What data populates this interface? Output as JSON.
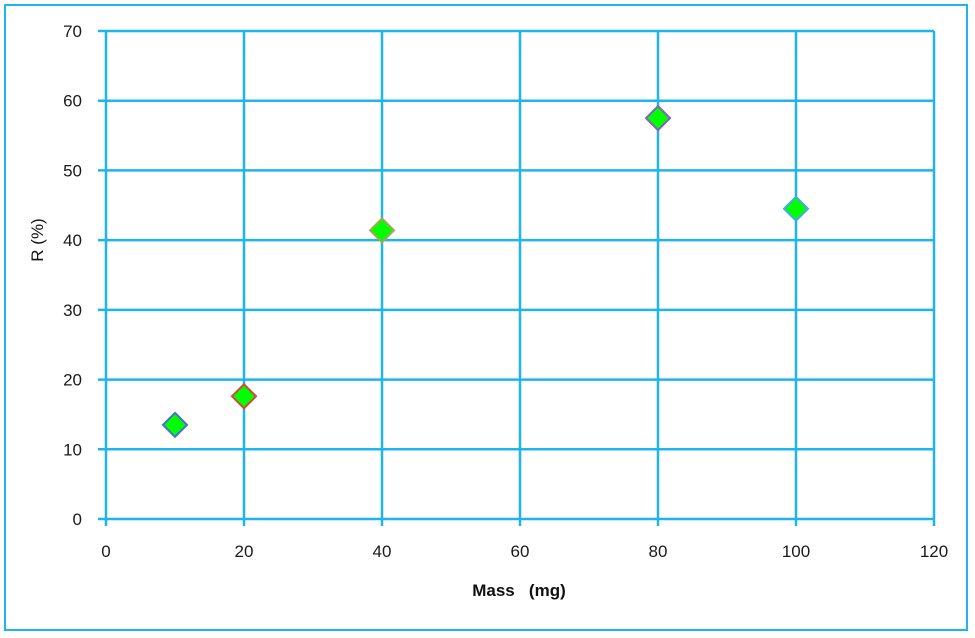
{
  "chart_data": {
    "type": "scatter",
    "title": "",
    "xlabel": "Mass   (mg)",
    "ylabel": "R (%)",
    "xlim": [
      0,
      120
    ],
    "ylim": [
      0,
      70
    ],
    "xticks": [
      0,
      20,
      40,
      60,
      80,
      100,
      120
    ],
    "yticks": [
      0,
      10,
      20,
      30,
      40,
      50,
      60,
      70
    ],
    "grid": true,
    "legend": null,
    "series": [
      {
        "name": "R",
        "marker": "diamond",
        "fill_color": "#00ff00",
        "points": [
          {
            "x": 10,
            "y": 13.5,
            "edge_color": "#4a6fd0"
          },
          {
            "x": 20,
            "y": 17.6,
            "edge_color": "#d24a3c"
          },
          {
            "x": 40,
            "y": 41.4,
            "edge_color": "#a8a65a"
          },
          {
            "x": 80,
            "y": 57.5,
            "edge_color": "#8a5ec0"
          },
          {
            "x": 100,
            "y": 44.5,
            "edge_color": "#4aa8e8"
          }
        ]
      }
    ]
  },
  "colors": {
    "grid": "#1fb4ec",
    "frame": "#1fb4ec",
    "text": "#1a1a1a"
  },
  "labels": {
    "x_title": "Mass   (mg)",
    "y_title": "R (%)"
  }
}
